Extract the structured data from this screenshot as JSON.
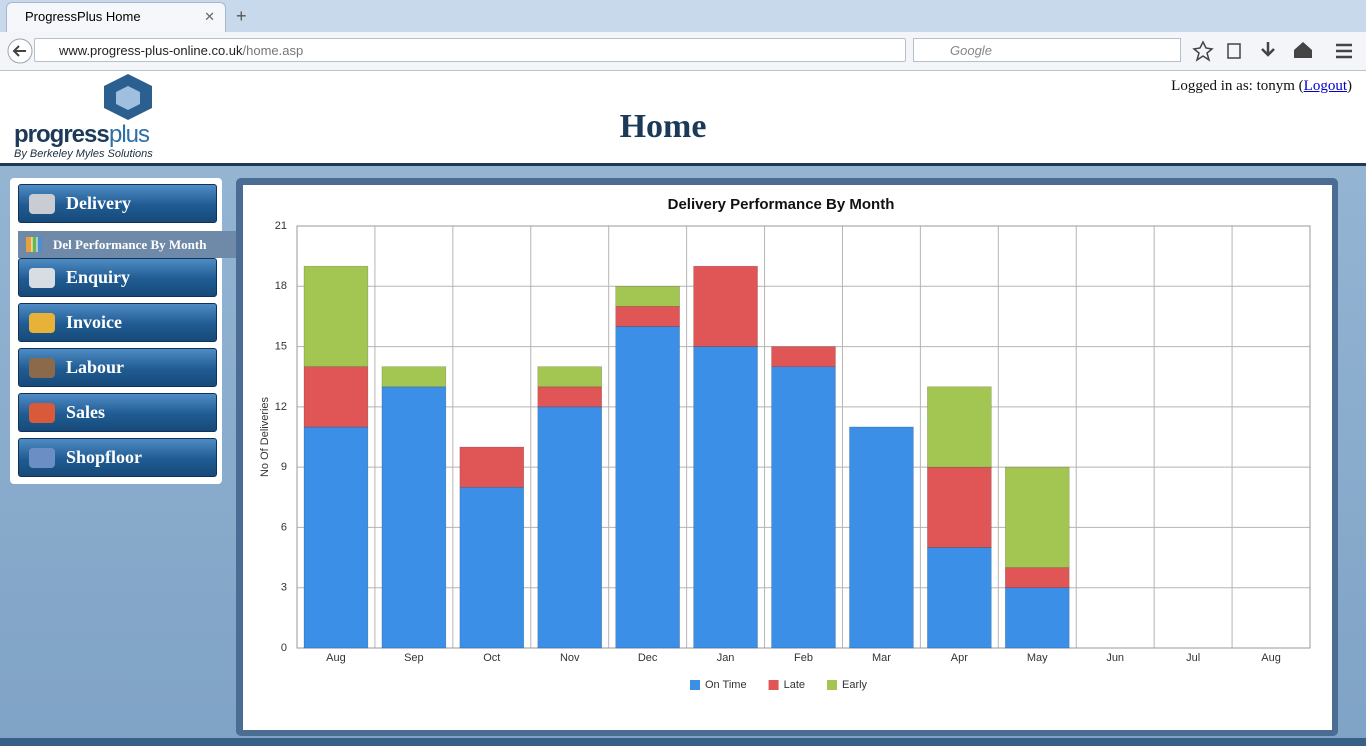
{
  "browser": {
    "tab_title": "ProgressPlus Home",
    "url_host": "www.progress-plus-online.co.uk",
    "url_path": "/home.asp",
    "search_placeholder": "Google"
  },
  "header": {
    "logo_word_1": "progress",
    "logo_word_2": "plus",
    "logo_tagline": "By Berkeley Myles Solutions",
    "login_prefix": "Logged in as: tonym (",
    "logout": "Logout",
    "login_suffix": ")",
    "title": "Home"
  },
  "nav": {
    "items": [
      "Delivery",
      "Enquiry",
      "Invoice",
      "Labour",
      "Sales",
      "Shopfloor"
    ],
    "submenu": "Del Performance By Month"
  },
  "chart_data": {
    "type": "bar",
    "stacked": true,
    "title": "Delivery Performance By Month",
    "y_label": "No Of Deliveries",
    "categories": [
      "Aug",
      "Sep",
      "Oct",
      "Nov",
      "Dec",
      "Jan",
      "Feb",
      "Mar",
      "Apr",
      "May",
      "Jun",
      "Jul",
      "Aug"
    ],
    "series": [
      {
        "name": "On Time",
        "color": "#3b8fe6",
        "values": [
          11,
          13,
          8,
          12,
          16,
          15,
          14,
          11,
          5,
          3,
          0,
          0,
          0
        ]
      },
      {
        "name": "Late",
        "color": "#e05656",
        "values": [
          3,
          0,
          2,
          1,
          1,
          4,
          1,
          0,
          4,
          1,
          0,
          0,
          0
        ]
      },
      {
        "name": "Early",
        "color": "#a3c653",
        "values": [
          5,
          1,
          0,
          1,
          1,
          0,
          0,
          0,
          4,
          5,
          0,
          0,
          0
        ]
      }
    ],
    "ylim": [
      0,
      21
    ],
    "yticks": [
      0,
      3,
      6,
      9,
      12,
      15,
      18,
      21
    ],
    "grid": true,
    "legend": "bottom"
  }
}
